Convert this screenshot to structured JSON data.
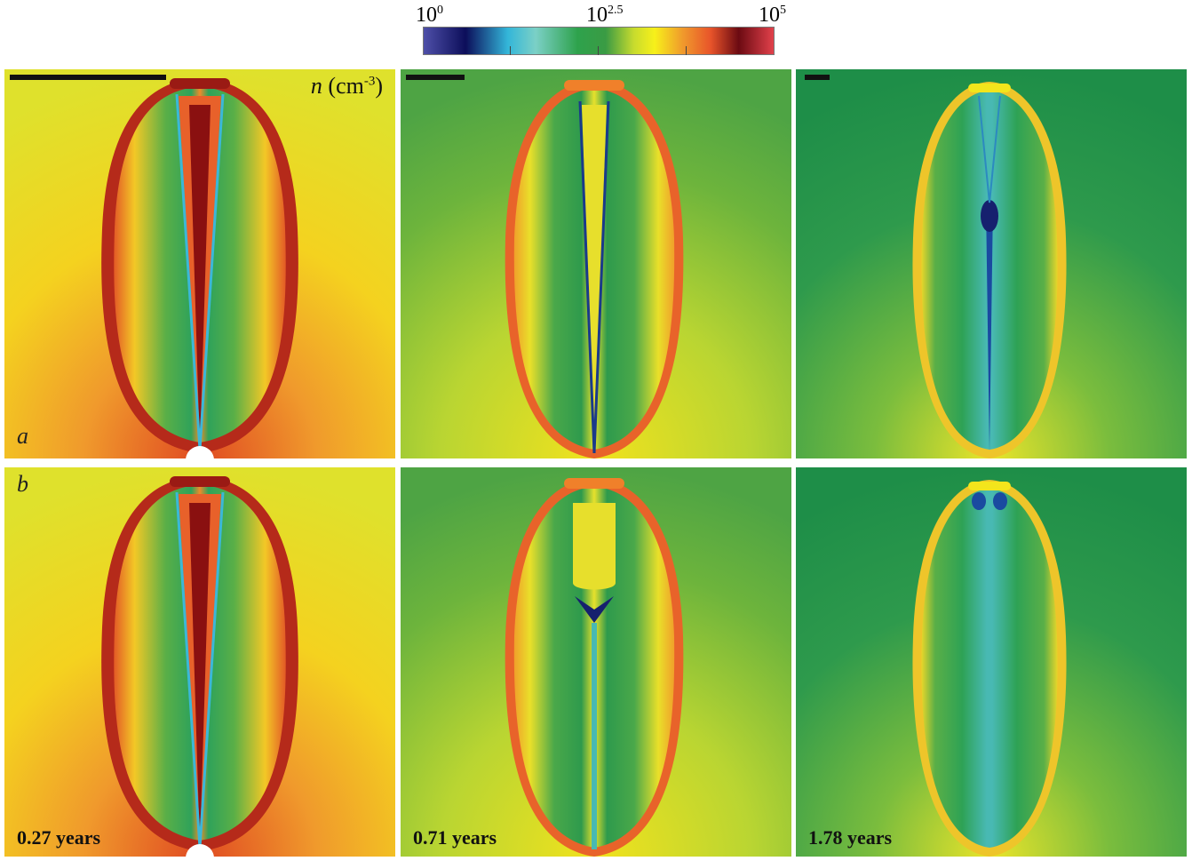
{
  "colorbar": {
    "min_label_base": "10",
    "min_label_exp": "0",
    "mid_label_base": "10",
    "mid_label_exp": "2.5",
    "max_label_base": "10",
    "max_label_exp": "5"
  },
  "units": {
    "symbol": "n",
    "unit": "(cm",
    "exp": "-3",
    "close": ")"
  },
  "rows": {
    "a": "a",
    "b": "b"
  },
  "times": [
    "0.27 years",
    "0.71 years",
    "1.78 years"
  ],
  "colors": {
    "bg_panel1": "#efd81e",
    "bg_panel2": "#6fb23c",
    "bg_panel3": "#3e9a4a",
    "shell_outer": "#e8562a",
    "shell_yellow": "#f3e51c",
    "cavity_green": "#3ea25a",
    "jet_core_dark": "#7a0c10",
    "cyan_streak": "#3cb7d8",
    "blue_knot": "#16206e"
  }
}
